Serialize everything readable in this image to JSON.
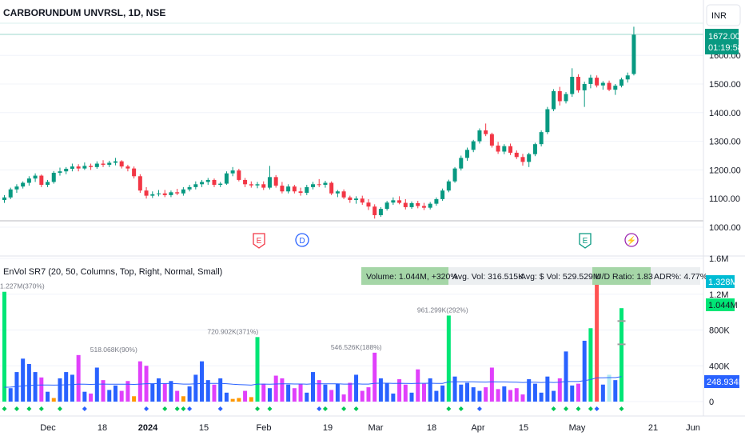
{
  "symbol_title": "CARBORUNDUM UNVRSL, 1D, NSE",
  "currency": "INR",
  "price": {
    "last_price": "1672.00",
    "countdown": "01:19:58",
    "ticks": [
      "1600.00",
      "1500.00",
      "1400.00",
      "1300.00",
      "1200.00",
      "1100.00",
      "1000.00"
    ],
    "tick_values": [
      1600,
      1500,
      1400,
      1300,
      1200,
      1100,
      1000
    ]
  },
  "events": [
    {
      "letter": "E",
      "color": "#f23645"
    },
    {
      "letter": "D",
      "color": "#2962ff"
    },
    {
      "letter": "E",
      "color": "#089981"
    },
    {
      "letter": "⚡",
      "color": "#9c27b0"
    }
  ],
  "indicator": {
    "title": "EnVol SR7 (20, 50, Columns, Top, Right, Normal, Small)",
    "stats": {
      "volume": "Volume: 1.044M, +320%",
      "avg_vol": "Avg. Vol: 316.515K",
      "avg_dollar_vol": "Avg: $ Vol: 529.529M",
      "ud_ratio": "U/D Ratio: 1.83",
      "adr": "ADR%: 4.77%"
    },
    "ticks": [
      "1.6M",
      "1.2M",
      "800K",
      "400K",
      "0"
    ],
    "tick_values": [
      1600000,
      1200000,
      800000,
      400000,
      0
    ],
    "badges": {
      "cyan": "1.328M",
      "green": "1.044M",
      "blue": "248.934K"
    },
    "annotations": [
      "1.227M(370%)",
      "518.068K(90%)",
      "720.902K(371%)",
      "546.526K(188%)",
      "961.299K(292%)"
    ]
  },
  "x_axis": {
    "labels": [
      "Dec",
      "18",
      "2024",
      "15",
      "Feb",
      "19",
      "Mar",
      "18",
      "Apr",
      "15",
      "May",
      "21",
      "Jun"
    ]
  },
  "colors": {
    "up": "#089981",
    "down": "#f23645",
    "vol_up": "#00e676",
    "vol_down": "#ff5252",
    "vol_blue": "#2962ff",
    "vol_magenta": "#e040fb",
    "vol_orange": "#ff9800",
    "avg_line": "#2962ff"
  },
  "chart_data": {
    "type": "candlestick",
    "price_ylim": [
      960,
      1700
    ],
    "volume_ylim": [
      0,
      1700000
    ],
    "ohlc": [
      [
        1095,
        1112,
        1085,
        1104
      ],
      [
        1104,
        1138,
        1098,
        1132
      ],
      [
        1132,
        1150,
        1120,
        1142
      ],
      [
        1142,
        1160,
        1135,
        1155
      ],
      [
        1155,
        1178,
        1145,
        1170
      ],
      [
        1170,
        1188,
        1158,
        1180
      ],
      [
        1180,
        1184,
        1140,
        1148
      ],
      [
        1148,
        1165,
        1140,
        1158
      ],
      [
        1158,
        1196,
        1152,
        1190
      ],
      [
        1190,
        1208,
        1180,
        1195
      ],
      [
        1195,
        1210,
        1185,
        1204
      ],
      [
        1204,
        1222,
        1195,
        1212
      ],
      [
        1212,
        1220,
        1195,
        1205
      ],
      [
        1205,
        1226,
        1200,
        1214
      ],
      [
        1214,
        1222,
        1200,
        1210
      ],
      [
        1210,
        1230,
        1204,
        1222
      ],
      [
        1222,
        1234,
        1210,
        1218
      ],
      [
        1218,
        1232,
        1210,
        1225
      ],
      [
        1225,
        1242,
        1216,
        1230
      ],
      [
        1230,
        1234,
        1205,
        1212
      ],
      [
        1212,
        1218,
        1195,
        1205
      ],
      [
        1205,
        1212,
        1170,
        1178
      ],
      [
        1178,
        1185,
        1120,
        1128
      ],
      [
        1128,
        1140,
        1100,
        1110
      ],
      [
        1110,
        1125,
        1102,
        1115
      ],
      [
        1115,
        1130,
        1108,
        1118
      ],
      [
        1118,
        1130,
        1105,
        1112
      ],
      [
        1112,
        1128,
        1105,
        1122
      ],
      [
        1122,
        1134,
        1112,
        1118
      ],
      [
        1118,
        1140,
        1110,
        1132
      ],
      [
        1132,
        1148,
        1125,
        1140
      ],
      [
        1140,
        1160,
        1132,
        1150
      ],
      [
        1150,
        1165,
        1140,
        1158
      ],
      [
        1158,
        1172,
        1148,
        1165
      ],
      [
        1165,
        1170,
        1140,
        1148
      ],
      [
        1148,
        1158,
        1140,
        1152
      ],
      [
        1152,
        1195,
        1148,
        1188
      ],
      [
        1188,
        1210,
        1178,
        1198
      ],
      [
        1198,
        1204,
        1160,
        1165
      ],
      [
        1165,
        1172,
        1140,
        1150
      ],
      [
        1150,
        1160,
        1138,
        1146
      ],
      [
        1146,
        1158,
        1136,
        1150
      ],
      [
        1150,
        1160,
        1130,
        1138
      ],
      [
        1138,
        1214,
        1132,
        1175
      ],
      [
        1175,
        1182,
        1138,
        1145
      ],
      [
        1145,
        1158,
        1118,
        1125
      ],
      [
        1125,
        1150,
        1118,
        1142
      ],
      [
        1142,
        1148,
        1118,
        1125
      ],
      [
        1125,
        1138,
        1110,
        1120
      ],
      [
        1120,
        1148,
        1112,
        1140
      ],
      [
        1140,
        1158,
        1132,
        1150
      ],
      [
        1150,
        1168,
        1140,
        1148
      ],
      [
        1148,
        1162,
        1138,
        1155
      ],
      [
        1155,
        1160,
        1112,
        1118
      ],
      [
        1118,
        1130,
        1105,
        1125
      ],
      [
        1125,
        1132,
        1098,
        1104
      ],
      [
        1104,
        1110,
        1085,
        1095
      ],
      [
        1095,
        1108,
        1082,
        1100
      ],
      [
        1100,
        1110,
        1078,
        1086
      ],
      [
        1086,
        1098,
        1060,
        1072
      ],
      [
        1072,
        1080,
        1030,
        1042
      ],
      [
        1042,
        1070,
        1036,
        1064
      ],
      [
        1064,
        1092,
        1058,
        1086
      ],
      [
        1086,
        1104,
        1078,
        1094
      ],
      [
        1094,
        1108,
        1080,
        1085
      ],
      [
        1085,
        1098,
        1062,
        1070
      ],
      [
        1070,
        1090,
        1064,
        1084
      ],
      [
        1084,
        1092,
        1066,
        1074
      ],
      [
        1074,
        1085,
        1060,
        1068
      ],
      [
        1068,
        1088,
        1062,
        1082
      ],
      [
        1082,
        1104,
        1075,
        1098
      ],
      [
        1098,
        1135,
        1092,
        1128
      ],
      [
        1128,
        1166,
        1122,
        1160
      ],
      [
        1160,
        1210,
        1155,
        1205
      ],
      [
        1205,
        1250,
        1198,
        1242
      ],
      [
        1242,
        1278,
        1232,
        1270
      ],
      [
        1270,
        1305,
        1262,
        1300
      ],
      [
        1300,
        1345,
        1292,
        1338
      ],
      [
        1338,
        1362,
        1318,
        1325
      ],
      [
        1325,
        1330,
        1278,
        1285
      ],
      [
        1285,
        1298,
        1256,
        1264
      ],
      [
        1264,
        1290,
        1255,
        1283
      ],
      [
        1283,
        1292,
        1252,
        1260
      ],
      [
        1260,
        1268,
        1238,
        1245
      ],
      [
        1245,
        1256,
        1215,
        1228
      ],
      [
        1228,
        1260,
        1210,
        1255
      ],
      [
        1255,
        1295,
        1248,
        1290
      ],
      [
        1290,
        1338,
        1282,
        1332
      ],
      [
        1332,
        1420,
        1325,
        1412
      ],
      [
        1412,
        1482,
        1405,
        1475
      ],
      [
        1475,
        1490,
        1425,
        1440
      ],
      [
        1440,
        1472,
        1432,
        1465
      ],
      [
        1465,
        1555,
        1455,
        1525
      ],
      [
        1525,
        1534,
        1470,
        1478
      ],
      [
        1478,
        1508,
        1420,
        1500
      ],
      [
        1500,
        1532,
        1485,
        1522
      ],
      [
        1522,
        1530,
        1488,
        1495
      ],
      [
        1495,
        1510,
        1480,
        1504
      ],
      [
        1504,
        1512,
        1475,
        1480
      ],
      [
        1480,
        1500,
        1462,
        1494
      ],
      [
        1494,
        1522,
        1488,
        1516
      ],
      [
        1516,
        1540,
        1505,
        1530
      ],
      [
        1535,
        1700,
        1530,
        1672
      ]
    ],
    "volume": [
      1227000,
      150000,
      330000,
      480000,
      420000,
      330000,
      270000,
      110000,
      40000,
      260000,
      330000,
      300000,
      520000,
      110000,
      90000,
      380000,
      240000,
      130000,
      180000,
      120000,
      230000,
      60000,
      450000,
      400000,
      200000,
      260000,
      200000,
      230000,
      120000,
      60000,
      170000,
      300000,
      450000,
      240000,
      190000,
      260000,
      100000,
      30000,
      40000,
      120000,
      50000,
      720902,
      200000,
      150000,
      290000,
      260000,
      190000,
      150000,
      200000,
      100000,
      330000,
      240000,
      190000,
      130000,
      200000,
      80000,
      210000,
      300000,
      120000,
      160000,
      546526,
      260000,
      210000,
      90000,
      250000,
      190000,
      100000,
      360000,
      200000,
      260000,
      120000,
      180000,
      961299,
      280000,
      190000,
      210000,
      160000,
      120000,
      160000,
      380000,
      140000,
      170000,
      130000,
      150000,
      80000,
      250000,
      200000,
      100000,
      280000,
      120000,
      260000,
      560000,
      180000,
      200000,
      680000,
      820000,
      1330000,
      190000,
      300000,
      240000,
      1044000
    ],
    "volume_avg": [
      160000,
      162000,
      168000,
      175000,
      180000,
      184000,
      186000,
      186000,
      184000,
      186000,
      188000,
      190000,
      196000,
      194000,
      192000,
      195000,
      196000,
      195000,
      195000,
      194000,
      195000,
      192000,
      196000,
      200000,
      200000,
      202000,
      202000,
      203000,
      200000,
      196000,
      196000,
      198000,
      202000,
      203000,
      203000,
      204000,
      200000,
      194000,
      190000,
      188000,
      184000,
      196000,
      196000,
      195000,
      197000,
      198000,
      198000,
      197000,
      197000,
      195000,
      198000,
      199000,
      199000,
      198000,
      198000,
      196000,
      196000,
      198000,
      196000,
      196000,
      205000,
      206000,
      206000,
      204000,
      205000,
      204000,
      202000,
      205000,
      205000,
      206000,
      204000,
      204000,
      220000,
      222000,
      222000,
      222000,
      221000,
      219000,
      218000,
      222000,
      220000,
      220000,
      218000,
      217000,
      214000,
      216000,
      216000,
      214000,
      216000,
      214000,
      216000,
      224000,
      224000,
      224000,
      234000,
      246000,
      266000,
      266000,
      268000,
      268000,
      280000
    ]
  }
}
